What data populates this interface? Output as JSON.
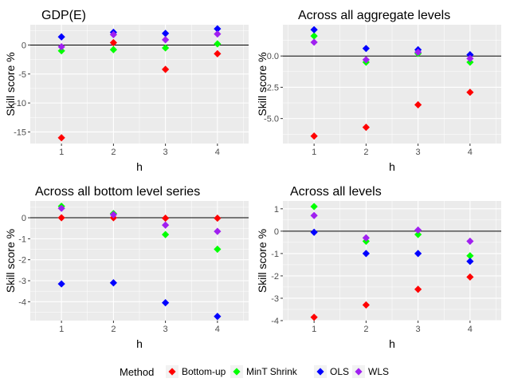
{
  "chart_data": [
    {
      "type": "scatter",
      "title": "GDP(E)",
      "xlabel": "h",
      "ylabel": "Skill score %",
      "x": [
        1,
        2,
        3,
        4
      ],
      "xlim": [
        0.4,
        4.6
      ],
      "ylim": [
        -17,
        3.5
      ],
      "yticks": [
        0,
        -5,
        -10,
        -15
      ],
      "ytick_labels": [
        "0",
        "-5",
        "-10",
        "-15"
      ],
      "reference_line": 0,
      "series": [
        {
          "name": "Bottom-up",
          "values": [
            -16,
            0.4,
            -4.2,
            -1.5
          ]
        },
        {
          "name": "MinT Shrink",
          "values": [
            -1.0,
            -0.8,
            -0.5,
            0.2
          ]
        },
        {
          "name": "OLS",
          "values": [
            1.4,
            2.2,
            2.0,
            2.8
          ]
        },
        {
          "name": "WLS",
          "values": [
            -0.3,
            1.8,
            0.9,
            1.9
          ]
        }
      ]
    },
    {
      "type": "scatter",
      "title": "Across all aggregate levels",
      "xlabel": "h",
      "ylabel": "Skill score %",
      "x": [
        1,
        2,
        3,
        4
      ],
      "xlim": [
        0.4,
        4.6
      ],
      "ylim": [
        -7.0,
        2.5
      ],
      "yticks": [
        0.0,
        -2.5,
        -5.0
      ],
      "ytick_labels": [
        "0.0",
        "-2.5",
        "-5.0"
      ],
      "reference_line": 0,
      "series": [
        {
          "name": "Bottom-up",
          "values": [
            -6.4,
            -5.7,
            -3.9,
            -2.9
          ]
        },
        {
          "name": "MinT Shrink",
          "values": [
            1.6,
            -0.5,
            0.2,
            -0.5
          ]
        },
        {
          "name": "OLS",
          "values": [
            2.1,
            0.6,
            0.5,
            0.1
          ]
        },
        {
          "name": "WLS",
          "values": [
            1.1,
            -0.3,
            0.3,
            -0.2
          ]
        }
      ]
    },
    {
      "type": "scatter",
      "title": "Across all bottom level series",
      "xlabel": "h",
      "ylabel": "Skill score %",
      "x": [
        1,
        2,
        3,
        4
      ],
      "xlim": [
        0.4,
        4.6
      ],
      "ylim": [
        -4.9,
        0.8
      ],
      "yticks": [
        0,
        -1,
        -2,
        -3,
        -4
      ],
      "ytick_labels": [
        "0",
        "-1",
        "-2",
        "-3",
        "-4"
      ],
      "reference_line": 0,
      "series": [
        {
          "name": "Bottom-up",
          "values": [
            0.0,
            0.0,
            -0.02,
            -0.02
          ]
        },
        {
          "name": "MinT Shrink",
          "values": [
            0.55,
            0.2,
            -0.8,
            -1.5
          ]
        },
        {
          "name": "OLS",
          "values": [
            -3.15,
            -3.1,
            -4.05,
            -4.7
          ]
        },
        {
          "name": "WLS",
          "values": [
            0.45,
            0.15,
            -0.35,
            -0.65
          ]
        }
      ]
    },
    {
      "type": "scatter",
      "title": "Across all levels",
      "xlabel": "h",
      "ylabel": "Skill score %",
      "x": [
        1,
        2,
        3,
        4
      ],
      "xlim": [
        0.4,
        4.6
      ],
      "ylim": [
        -4.0,
        1.35
      ],
      "yticks": [
        1,
        0,
        -1,
        -2,
        -3,
        -4
      ],
      "ytick_labels": [
        "1",
        "0",
        "-1",
        "-2",
        "-3",
        "-4"
      ],
      "reference_line": 0,
      "series": [
        {
          "name": "Bottom-up",
          "values": [
            -3.85,
            -3.3,
            -2.6,
            -2.05
          ]
        },
        {
          "name": "MinT Shrink",
          "values": [
            1.1,
            -0.45,
            -0.15,
            -1.1
          ]
        },
        {
          "name": "OLS",
          "values": [
            -0.05,
            -1.0,
            -1.0,
            -1.35
          ]
        },
        {
          "name": "WLS",
          "values": [
            0.7,
            -0.3,
            0.05,
            -0.45
          ]
        }
      ]
    }
  ],
  "legend": {
    "title": "Method",
    "placement": "bottom",
    "items": [
      {
        "label": "Bottom-up",
        "color": "#ff0000"
      },
      {
        "label": "MinT Shrink",
        "color": "#00ff00"
      },
      {
        "label": "OLS",
        "color": "#0000ff"
      },
      {
        "label": "WLS",
        "color": "#a020f0"
      }
    ]
  },
  "style": {
    "panel_background": "#ebebeb",
    "grid_color": "#ffffff",
    "reference_line_color": "#000000"
  }
}
